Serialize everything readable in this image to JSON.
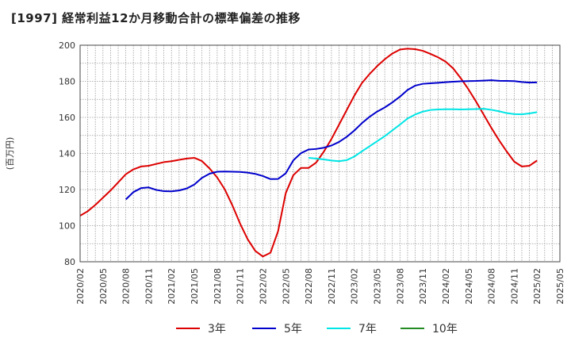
{
  "chart_data": {
    "type": "line",
    "title": "[1997]  経常利益12か月移動合計の標準偏差の推移",
    "ylabel": "(百万円)",
    "xlabel": "",
    "ylim": [
      80,
      200
    ],
    "yticks": [
      80,
      100,
      120,
      140,
      160,
      180,
      200
    ],
    "xticks": [
      "2020/02",
      "2020/05",
      "2020/08",
      "2020/11",
      "2021/02",
      "2021/05",
      "2021/08",
      "2021/11",
      "2022/02",
      "2022/05",
      "2022/08",
      "2022/11",
      "2023/02",
      "2023/05",
      "2023/08",
      "2023/11",
      "2024/02",
      "2024/05",
      "2024/08",
      "2024/11",
      "2025/02",
      "2025/05"
    ],
    "grid": true,
    "legend_position": "bottom",
    "series": [
      {
        "name": "3年",
        "color": "#dd0000",
        "x": [
          "2020/02",
          "2020/03",
          "2020/04",
          "2020/05",
          "2020/06",
          "2020/07",
          "2020/08",
          "2020/09",
          "2020/10",
          "2020/11",
          "2020/12",
          "2021/01",
          "2021/02",
          "2021/03",
          "2021/04",
          "2021/05",
          "2021/06",
          "2021/07",
          "2021/08",
          "2021/09",
          "2021/10",
          "2021/11",
          "2021/12",
          "2022/01",
          "2022/02",
          "2022/03",
          "2022/04",
          "2022/05",
          "2022/06",
          "2022/07",
          "2022/08",
          "2022/09",
          "2022/10",
          "2022/11",
          "2022/12",
          "2023/01",
          "2023/02",
          "2023/03",
          "2023/04",
          "2023/05",
          "2023/06",
          "2023/07",
          "2023/08",
          "2023/09",
          "2023/10",
          "2023/11",
          "2023/12",
          "2024/01",
          "2024/02",
          "2024/03",
          "2024/04",
          "2024/05",
          "2024/06",
          "2024/07",
          "2024/08",
          "2024/09",
          "2024/10",
          "2024/11",
          "2024/12",
          "2025/01",
          "2025/02"
        ],
        "values": [
          105.5,
          108,
          111.5,
          115.5,
          119.5,
          124,
          128.5,
          131.2,
          132.8,
          133.2,
          134.2,
          135.2,
          135.7,
          136.5,
          137.2,
          137.6,
          135.8,
          131.7,
          126.7,
          120.1,
          111.2,
          101.2,
          92.5,
          86,
          82.9,
          85,
          97,
          118,
          128,
          132,
          132,
          135,
          141,
          148,
          156,
          164,
          172,
          179,
          184,
          188.4,
          192.2,
          195.4,
          197.6,
          198.1,
          197.8,
          196.9,
          195.2,
          193.3,
          190.9,
          187.1,
          181.6,
          175.5,
          168.7,
          161.5,
          154.2,
          147.4,
          141.2,
          135.5,
          132.8,
          133.2,
          136.1
        ]
      },
      {
        "name": "5年",
        "color": "#0000cc",
        "x": [
          "2020/08",
          "2020/09",
          "2020/10",
          "2020/11",
          "2020/12",
          "2021/01",
          "2021/02",
          "2021/03",
          "2021/04",
          "2021/05",
          "2021/06",
          "2021/07",
          "2021/08",
          "2021/09",
          "2021/10",
          "2021/11",
          "2021/12",
          "2022/01",
          "2022/02",
          "2022/03",
          "2022/04",
          "2022/05",
          "2022/06",
          "2022/07",
          "2022/08",
          "2022/09",
          "2022/10",
          "2022/11",
          "2022/12",
          "2023/01",
          "2023/02",
          "2023/03",
          "2023/04",
          "2023/05",
          "2023/06",
          "2023/07",
          "2023/08",
          "2023/09",
          "2023/10",
          "2023/11",
          "2023/12",
          "2024/01",
          "2024/02",
          "2024/03",
          "2024/04",
          "2024/05",
          "2024/06",
          "2024/07",
          "2024/08",
          "2024/09",
          "2024/10",
          "2024/11",
          "2024/12",
          "2025/01",
          "2025/02"
        ],
        "values": [
          114.5,
          118.6,
          120.8,
          121.2,
          119.8,
          119.1,
          119,
          119.5,
          120.6,
          122.8,
          126.5,
          128.8,
          129.9,
          130,
          129.9,
          129.8,
          129.4,
          128.7,
          127.5,
          125.8,
          125.9,
          129,
          136.2,
          140.2,
          142.2,
          142.5,
          143.2,
          144.4,
          146.4,
          149.2,
          152.7,
          156.8,
          160.3,
          163.2,
          165.5,
          168.3,
          171.5,
          175.2,
          177.6,
          178.6,
          178.9,
          179.2,
          179.5,
          179.8,
          180,
          180.1,
          180.2,
          180.4,
          180.6,
          180.3,
          180.2,
          180.1,
          179.6,
          179.3,
          179.4
        ]
      },
      {
        "name": "7年",
        "color": "#00e5e5",
        "x": [
          "2022/08",
          "2022/09",
          "2022/10",
          "2022/11",
          "2022/12",
          "2023/01",
          "2023/02",
          "2023/03",
          "2023/04",
          "2023/05",
          "2023/06",
          "2023/07",
          "2023/08",
          "2023/09",
          "2023/10",
          "2023/11",
          "2023/12",
          "2024/01",
          "2024/02",
          "2024/03",
          "2024/04",
          "2024/05",
          "2024/06",
          "2024/07",
          "2024/08",
          "2024/09",
          "2024/10",
          "2024/11",
          "2024/12",
          "2025/01",
          "2025/02"
        ],
        "values": [
          137.6,
          137.2,
          136.7,
          136.1,
          135.7,
          136.3,
          138.3,
          141.2,
          144,
          146.8,
          149.6,
          152.8,
          156,
          159.4,
          161.6,
          163.2,
          164.1,
          164.4,
          164.5,
          164.5,
          164.4,
          164.5,
          164.6,
          164.8,
          164.2,
          163.4,
          162.4,
          161.8,
          161.7,
          162.2,
          162.9
        ]
      },
      {
        "name": "10年",
        "color": "#228b22",
        "x": [],
        "values": []
      }
    ]
  }
}
